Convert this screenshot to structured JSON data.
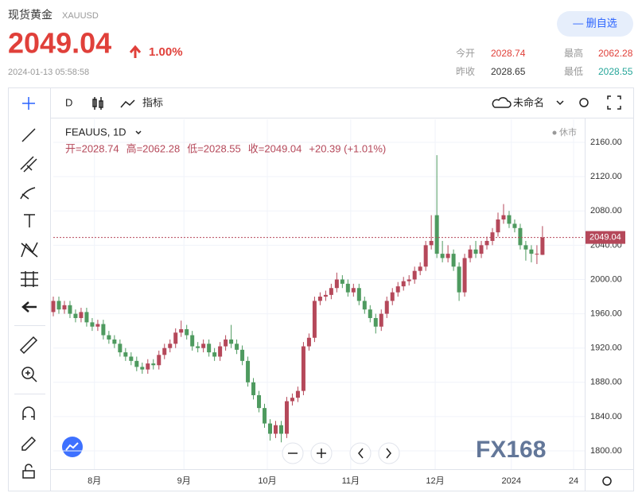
{
  "header": {
    "title": "现货黄金",
    "symbol": "XAUUSD",
    "price": "2049.04",
    "change": "1.00%",
    "timestamp": "2024-01-13 05:58:58",
    "button": "— 删自选",
    "stats": [
      {
        "label": "今开",
        "value": "2028.74"
      },
      {
        "label": "最高",
        "value": "2062.28"
      },
      {
        "label": "昨收",
        "value": "2028.65"
      },
      {
        "label": "最低",
        "value": "2028.55"
      }
    ]
  },
  "toolbar": {
    "interval": "D",
    "indicators": "指标",
    "layout": "未命名"
  },
  "chart_data": {
    "type": "candlestick",
    "symbol_label": "FEAUUS, 1D",
    "status": "休市",
    "ohlc_legend": [
      "开=2028.74",
      "高=2062.28",
      "低=2028.55",
      "收=2049.04",
      "+20.39 (+1.01%)"
    ],
    "up_color": "#b5485a",
    "down_color": "#4e9a5f",
    "x": [
      0,
      1,
      2,
      3,
      4,
      5,
      6,
      7,
      8,
      9,
      10,
      11,
      12,
      13,
      14,
      15,
      16,
      17,
      18,
      19,
      20,
      21,
      22,
      23,
      24,
      25,
      26,
      27,
      28,
      29,
      30,
      31,
      32,
      33,
      34,
      35,
      36,
      37,
      38,
      39,
      40,
      41,
      42,
      43,
      44,
      45,
      46,
      47,
      48,
      49,
      50,
      51,
      52,
      53,
      54,
      55,
      56,
      57,
      58,
      59,
      60,
      61,
      62,
      63,
      64,
      65,
      66,
      67,
      68,
      69,
      70,
      71,
      72,
      73,
      74,
      75,
      76,
      77,
      78,
      79,
      80,
      81,
      82,
      83,
      84,
      85,
      86,
      87,
      88
    ],
    "open": [
      1962,
      1975,
      1965,
      1970,
      1960,
      1955,
      1962,
      1950,
      1945,
      1948,
      1935,
      1930,
      1925,
      1915,
      1910,
      1905,
      1898,
      1895,
      1902,
      1900,
      1912,
      1920,
      1925,
      1938,
      1942,
      1935,
      1922,
      1920,
      1925,
      1915,
      1910,
      1922,
      1930,
      1925,
      1918,
      1905,
      1880,
      1865,
      1850,
      1832,
      1820,
      1830,
      1820,
      1858,
      1862,
      1870,
      1922,
      1932,
      1975,
      1980,
      1982,
      1990,
      2000,
      1995,
      1985,
      1990,
      1975,
      1965,
      1955,
      1945,
      1960,
      1975,
      1985,
      1992,
      1998,
      2000,
      2010,
      2015,
      2040,
      2075,
      2030,
      2025,
      2030,
      2015,
      1985,
      2025,
      2035,
      2030,
      2040,
      2045,
      2055,
      2070,
      2075,
      2065,
      2060,
      2040,
      2035,
      2030,
      2028.74
    ],
    "high": [
      1980,
      1980,
      1975,
      1975,
      1965,
      1967,
      1967,
      1955,
      1953,
      1953,
      1940,
      1935,
      1930,
      1920,
      1915,
      1910,
      1903,
      1907,
      1907,
      1917,
      1925,
      1930,
      1943,
      1952,
      1947,
      1940,
      1927,
      1930,
      1930,
      1920,
      1927,
      1935,
      1947,
      1930,
      1923,
      1910,
      1885,
      1870,
      1855,
      1837,
      1835,
      1835,
      1863,
      1867,
      1875,
      1927,
      1937,
      1980,
      1985,
      1987,
      1995,
      2008,
      2005,
      2000,
      1995,
      1995,
      1980,
      1970,
      1960,
      1965,
      1980,
      1990,
      1997,
      2003,
      2005,
      2015,
      2020,
      2045,
      2075,
      2145,
      2045,
      2040,
      2035,
      2020,
      2030,
      2040,
      2045,
      2045,
      2050,
      2060,
      2078,
      2088,
      2080,
      2070,
      2065,
      2045,
      2040,
      2040,
      2062.28
    ],
    "low": [
      1957,
      1960,
      1960,
      1955,
      1950,
      1950,
      1945,
      1940,
      1940,
      1930,
      1925,
      1920,
      1910,
      1905,
      1900,
      1893,
      1890,
      1890,
      1895,
      1895,
      1907,
      1915,
      1920,
      1933,
      1930,
      1917,
      1915,
      1915,
      1910,
      1905,
      1905,
      1917,
      1920,
      1913,
      1900,
      1875,
      1860,
      1845,
      1827,
      1812,
      1815,
      1810,
      1815,
      1853,
      1857,
      1865,
      1917,
      1927,
      1970,
      1975,
      1977,
      1985,
      1990,
      1980,
      1980,
      1970,
      1960,
      1950,
      1937,
      1940,
      1955,
      1970,
      1980,
      1987,
      1993,
      1995,
      2005,
      2010,
      2035,
      2025,
      2020,
      2020,
      2010,
      1975,
      1980,
      2020,
      2025,
      2025,
      2035,
      2040,
      2050,
      2065,
      2060,
      2055,
      2035,
      2022,
      2020,
      2018,
      2028.55
    ],
    "close": [
      1975,
      1965,
      1970,
      1960,
      1955,
      1962,
      1950,
      1945,
      1948,
      1935,
      1930,
      1925,
      1915,
      1910,
      1905,
      1898,
      1895,
      1902,
      1900,
      1912,
      1920,
      1925,
      1938,
      1942,
      1935,
      1922,
      1920,
      1925,
      1915,
      1910,
      1922,
      1930,
      1925,
      1918,
      1905,
      1880,
      1865,
      1850,
      1832,
      1820,
      1830,
      1820,
      1858,
      1862,
      1870,
      1922,
      1932,
      1975,
      1980,
      1982,
      1990,
      2000,
      1995,
      1985,
      1990,
      1975,
      1965,
      1955,
      1945,
      1960,
      1975,
      1985,
      1992,
      1998,
      2000,
      2010,
      2015,
      2040,
      2045,
      2030,
      2025,
      2030,
      2015,
      1985,
      2025,
      2035,
      2030,
      2040,
      2045,
      2055,
      2070,
      2075,
      2065,
      2060,
      2040,
      2035,
      2030,
      2030,
      2049.04
    ],
    "price_line": {
      "value": 2049.04,
      "label": "2049.04"
    },
    "xlim": [
      0,
      95.6
    ],
    "xticks": [
      {
        "value": 7.4,
        "label": "8月"
      },
      {
        "value": 23.5,
        "label": "9月"
      },
      {
        "value": 38.5,
        "label": "10月"
      },
      {
        "value": 53.5,
        "label": "11月"
      },
      {
        "value": 68.7,
        "label": "12月"
      },
      {
        "value": 82.4,
        "label": "2024"
      },
      {
        "value": 93.6,
        "label": "24"
      }
    ],
    "ylim": [
      1778.7,
      2186.9
    ],
    "yticks": [
      {
        "value": 1800,
        "label": "1800.00"
      },
      {
        "value": 1840,
        "label": "1840.00"
      },
      {
        "value": 1880,
        "label": "1880.00"
      },
      {
        "value": 1920,
        "label": "1920.00"
      },
      {
        "value": 1960,
        "label": "1960.00"
      },
      {
        "value": 2000,
        "label": "2000.00"
      },
      {
        "value": 2040,
        "label": "2040.00"
      },
      {
        "value": 2080,
        "label": "2080.00"
      },
      {
        "value": 2120,
        "label": "2120.00"
      },
      {
        "value": 2160,
        "label": "2160.00"
      }
    ],
    "grid": true
  }
}
